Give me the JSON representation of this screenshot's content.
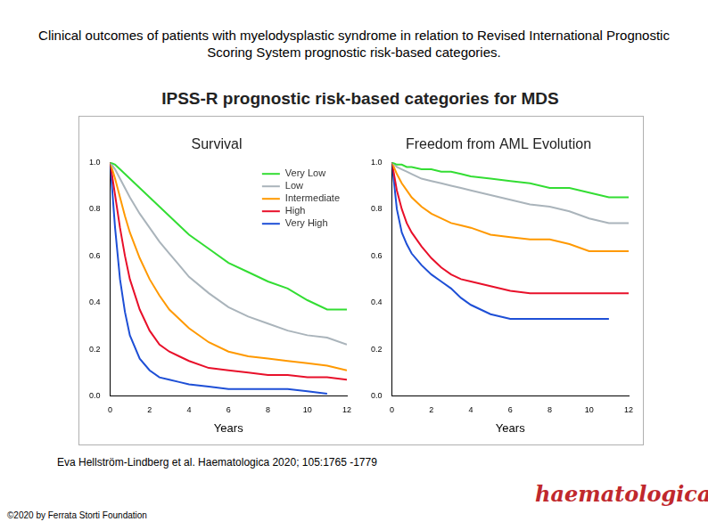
{
  "slide": {
    "title": "Clinical outcomes of patients with myelodysplastic syndrome in relation to Revised International Prognostic Scoring System prognostic risk-based categories.",
    "figure_title": "IPSS-R prognostic risk-based categories for MDS",
    "citation": "Eva Hellström-Lindberg et al. Haematologica 2020; 105:1765 -1779",
    "copyright": "©2020 by Ferrata Storti Foundation",
    "logo": "haematologica"
  },
  "chart_data": [
    {
      "type": "line",
      "title": "Survival",
      "x_label": "Years",
      "x": [
        0,
        0.25,
        0.5,
        0.75,
        1,
        1.5,
        2,
        2.5,
        3,
        3.5,
        4,
        5,
        6,
        7,
        8,
        9,
        10,
        11,
        12
      ],
      "series": [
        {
          "name": "Very Low",
          "color": "#33dd33",
          "values": [
            1,
            0.99,
            0.97,
            0.95,
            0.93,
            0.89,
            0.85,
            0.81,
            0.77,
            0.73,
            0.69,
            0.63,
            0.57,
            0.53,
            0.49,
            0.46,
            0.41,
            0.37,
            0.37
          ]
        },
        {
          "name": "Low",
          "color": "#aab4bb",
          "values": [
            1,
            0.97,
            0.93,
            0.89,
            0.85,
            0.78,
            0.72,
            0.66,
            0.61,
            0.56,
            0.51,
            0.44,
            0.38,
            0.34,
            0.31,
            0.28,
            0.26,
            0.25,
            0.22
          ]
        },
        {
          "name": "Intermediate",
          "color": "#ff9900",
          "values": [
            1,
            0.93,
            0.85,
            0.77,
            0.7,
            0.59,
            0.5,
            0.43,
            0.37,
            0.33,
            0.29,
            0.23,
            0.19,
            0.17,
            0.16,
            0.15,
            0.14,
            0.13,
            0.11
          ]
        },
        {
          "name": "High",
          "color": "#e8102a",
          "values": [
            1,
            0.86,
            0.72,
            0.6,
            0.5,
            0.37,
            0.28,
            0.22,
            0.19,
            0.17,
            0.15,
            0.12,
            0.11,
            0.1,
            0.09,
            0.09,
            0.08,
            0.08,
            0.07
          ]
        },
        {
          "name": "Very High",
          "color": "#1e4fd6",
          "values": [
            1,
            0.72,
            0.5,
            0.36,
            0.26,
            0.16,
            0.11,
            0.08,
            0.07,
            0.06,
            0.05,
            0.04,
            0.03,
            0.03,
            0.03,
            0.03,
            0.02,
            0.01,
            null
          ]
        }
      ],
      "xlim": [
        0,
        12
      ],
      "xticks": [
        0,
        2,
        4,
        6,
        8,
        10,
        12
      ],
      "ylim": [
        0,
        1
      ],
      "yticks": [
        {
          "value": 0,
          "label": "0.0"
        },
        0.2,
        0.4,
        0.6,
        0.8,
        {
          "value": 1,
          "label": "1.0"
        }
      ],
      "grid": false,
      "legend": "upper right"
    },
    {
      "type": "line",
      "title": "Freedom from AML Evolution",
      "x_label": "Years",
      "x": [
        0,
        0.25,
        0.5,
        0.75,
        1,
        1.5,
        2,
        2.5,
        3,
        3.5,
        4,
        5,
        6,
        7,
        8,
        9,
        10,
        11,
        12
      ],
      "series": [
        {
          "color": "#33dd33",
          "values": [
            1,
            0.99,
            0.99,
            0.98,
            0.98,
            0.97,
            0.97,
            0.96,
            0.96,
            0.95,
            0.94,
            0.93,
            0.92,
            0.91,
            0.89,
            0.89,
            0.87,
            0.85,
            0.85
          ]
        },
        {
          "color": "#aab4bb",
          "values": [
            1,
            0.98,
            0.97,
            0.96,
            0.95,
            0.93,
            0.92,
            0.91,
            0.9,
            0.89,
            0.88,
            0.86,
            0.84,
            0.82,
            0.81,
            0.79,
            0.76,
            0.74,
            0.74
          ]
        },
        {
          "color": "#ff9900",
          "values": [
            1,
            0.95,
            0.91,
            0.88,
            0.85,
            0.81,
            0.78,
            0.76,
            0.74,
            0.73,
            0.72,
            0.69,
            0.68,
            0.67,
            0.67,
            0.65,
            0.62,
            0.62,
            0.62
          ]
        },
        {
          "color": "#e8102a",
          "values": [
            1,
            0.88,
            0.8,
            0.74,
            0.7,
            0.64,
            0.59,
            0.55,
            0.52,
            0.5,
            0.49,
            0.47,
            0.45,
            0.44,
            0.44,
            0.44,
            0.44,
            0.44,
            0.44
          ]
        },
        {
          "color": "#1e4fd6",
          "values": [
            1,
            0.8,
            0.7,
            0.65,
            0.61,
            0.56,
            0.52,
            0.49,
            0.46,
            0.42,
            0.39,
            0.35,
            0.33,
            0.33,
            0.33,
            0.33,
            0.33,
            0.33,
            null
          ]
        }
      ],
      "xlim": [
        0,
        12
      ],
      "xticks": [
        0,
        2,
        4,
        6,
        8,
        10,
        12
      ],
      "ylim": [
        0,
        1
      ],
      "yticks": [
        {
          "value": 0,
          "label": "0.0"
        },
        0.2,
        0.4,
        0.6,
        0.8,
        {
          "value": 1,
          "label": "1.0"
        }
      ],
      "grid": false
    }
  ]
}
